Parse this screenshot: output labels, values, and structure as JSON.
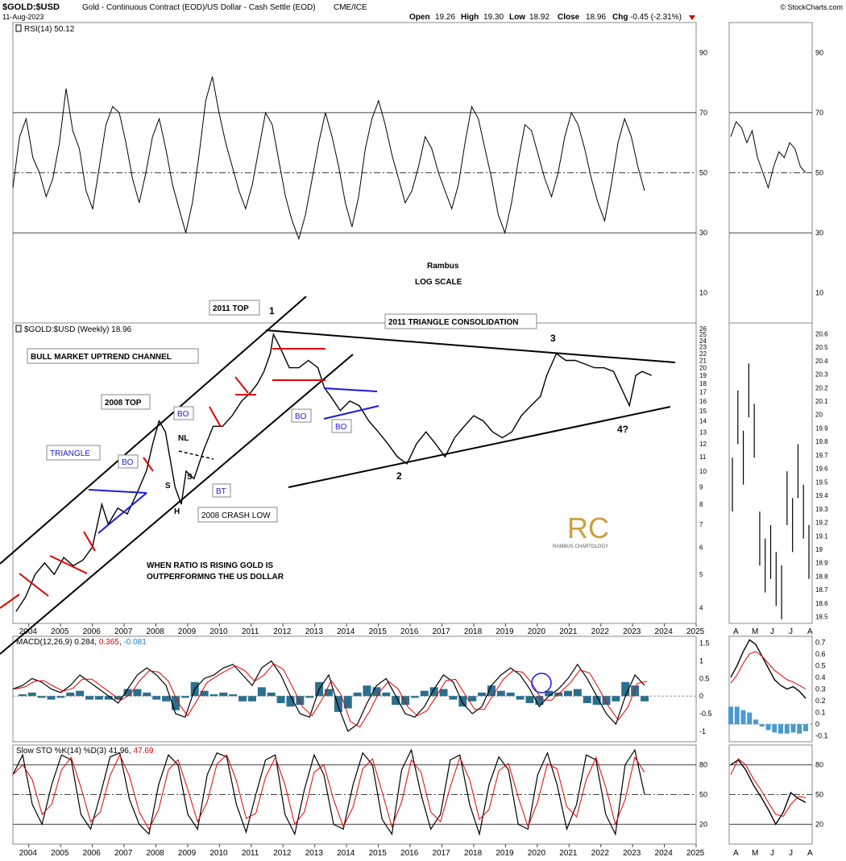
{
  "header": {
    "symbol": "$GOLD:$USD",
    "description": "Gold - Continuous Contract (EOD)/US Dollar - Cash Settle (EOD)",
    "exchange": "CME/ICE",
    "date": "11-Aug-2023",
    "open_label": "Open",
    "open": "19.26",
    "high_label": "High",
    "high": "19.30",
    "low_label": "Low",
    "low": "18.92",
    "close_label": "Close",
    "close": "18.96",
    "chg_label": "Chg",
    "chg": "-0.45 (-2.31%)",
    "copyright": "© StockCharts.com",
    "chg_color": "#cc0000"
  },
  "chart_data": [
    {
      "type": "line",
      "panel": "rsi",
      "title": "RSI(14) 50.12",
      "y_ticks": [
        90,
        70,
        50,
        30,
        10
      ],
      "ylim": [
        0,
        100
      ],
      "reference_lines": [
        70,
        50,
        30
      ],
      "series": [
        {
          "values": [
            45,
            62,
            68,
            55,
            50,
            42,
            48,
            60,
            78,
            64,
            58,
            44,
            38,
            52,
            66,
            72,
            70,
            60,
            48,
            40,
            50,
            62,
            68,
            58,
            46,
            38,
            30,
            40,
            56,
            74,
            82,
            70,
            60,
            52,
            44,
            38,
            46,
            58,
            70,
            66,
            54,
            42,
            34,
            28,
            36,
            48,
            60,
            70,
            62,
            52,
            40,
            32,
            42,
            58,
            68,
            74,
            66,
            56,
            48,
            40,
            44,
            52,
            62,
            58,
            50,
            44,
            38,
            46,
            60,
            72,
            68,
            58,
            48,
            36,
            30,
            40,
            54,
            66,
            64,
            56,
            48,
            42,
            50,
            62,
            70,
            66,
            58,
            48,
            40,
            34,
            46,
            60,
            68,
            62,
            52,
            44
          ]
        }
      ],
      "notes": [
        "Rambus",
        "LOG SCALE"
      ]
    },
    {
      "type": "line",
      "panel": "rsi_daily",
      "y_ticks": [
        90,
        70,
        50,
        30,
        10
      ],
      "ylim": [
        0,
        100
      ],
      "series": [
        {
          "values": [
            62,
            67,
            65,
            60,
            64,
            55,
            50,
            45,
            52,
            57,
            55,
            60,
            58,
            52,
            50
          ]
        }
      ]
    },
    {
      "type": "line",
      "panel": "price",
      "title": "$GOLD:$USD (Weekly) 18.96",
      "scale": "log",
      "y_ticks": [
        26,
        25,
        24,
        23,
        22,
        21,
        20,
        19,
        18,
        17,
        16,
        15,
        14,
        13,
        12,
        11,
        10,
        9,
        8,
        7,
        6,
        5,
        4
      ],
      "ylim": [
        3.6,
        27
      ],
      "x_labels": [
        "2004",
        "2005",
        "2006",
        "2007",
        "2008",
        "2009",
        "2010",
        "2011",
        "2012",
        "2013",
        "2014",
        "2015",
        "2016",
        "2017",
        "2018",
        "2019",
        "2020",
        "2021",
        "2022",
        "2023",
        "2024",
        "2025"
      ],
      "xlim": [
        2003.5,
        2025
      ],
      "series": [
        {
          "x": [
            2003.6,
            2003.9,
            2004.2,
            2004.5,
            2004.8,
            2005.1,
            2005.4,
            2005.7,
            2006.0,
            2006.3,
            2006.5,
            2006.8,
            2007.1,
            2007.4,
            2007.7,
            2007.9,
            2008.1,
            2008.3,
            2008.6,
            2008.8,
            2008.95,
            2009.2,
            2009.5,
            2009.8,
            2010.1,
            2010.4,
            2010.7,
            2011.0,
            2011.2,
            2011.4,
            2011.6,
            2011.7,
            2011.9,
            2012.2,
            2012.5,
            2012.8,
            2013.1,
            2013.3,
            2013.5,
            2013.8,
            2014.1,
            2014.4,
            2014.7,
            2015.0,
            2015.3,
            2015.6,
            2015.9,
            2016.2,
            2016.5,
            2016.8,
            2017.1,
            2017.4,
            2017.7,
            2018.0,
            2018.3,
            2018.6,
            2018.9,
            2019.2,
            2019.5,
            2019.8,
            2020.1,
            2020.3,
            2020.6,
            2020.9,
            2021.2,
            2021.5,
            2021.8,
            2022.1,
            2022.4,
            2022.7,
            2022.9,
            2023.1,
            2023.3,
            2023.6
          ],
          "y": [
            3.9,
            4.3,
            5.0,
            5.4,
            5.0,
            5.6,
            5.3,
            5.5,
            6.0,
            8.0,
            7.0,
            7.8,
            7.5,
            8.6,
            10.0,
            12.0,
            14.0,
            13.0,
            9.0,
            8.0,
            10.0,
            9.5,
            11.5,
            13.5,
            13.5,
            14.5,
            16.0,
            17.0,
            18.0,
            19.5,
            22.0,
            25.0,
            23.0,
            20.0,
            20.0,
            21.0,
            20.0,
            17.5,
            16.5,
            15.0,
            16.0,
            15.5,
            14.0,
            13.0,
            12.0,
            11.0,
            10.5,
            12.0,
            13.0,
            12.0,
            11.0,
            12.5,
            13.5,
            14.5,
            14.0,
            13.0,
            12.5,
            13.0,
            14.5,
            15.5,
            16.5,
            19.0,
            22.0,
            21.0,
            21.0,
            20.5,
            20.0,
            20.0,
            19.5,
            17.0,
            15.5,
            19.0,
            19.5,
            19.0
          ]
        }
      ],
      "annotations": [
        "2011 TOP",
        "1",
        "BULL MARKET UPTREND CHANNEL",
        "2008 TOP",
        "TRIANGLE",
        "BO",
        "BO",
        "NL",
        "S",
        "S",
        "H",
        "BT",
        "2008 CRASH LOW",
        "WHEN RATIO IS RISING GOLD IS",
        "OUTPERFORMNG THE US DOLLAR",
        "2011 TRIANGLE CONSOLIDATION",
        "BO",
        "BO",
        "2",
        "3",
        "4?"
      ]
    },
    {
      "type": "bar",
      "panel": "price_daily",
      "y_ticks": [
        20.6,
        20.5,
        20.4,
        20.3,
        20.2,
        20.1,
        20.0,
        19.9,
        19.8,
        19.7,
        19.6,
        19.5,
        19.4,
        19.3,
        19.2,
        19.1,
        19.0,
        18.9,
        18.8,
        18.7,
        18.6,
        18.5
      ],
      "ylim": [
        18.45,
        20.68
      ],
      "x_labels": [
        "A",
        "M",
        "J",
        "J",
        "A"
      ],
      "series": [
        {
          "values": [
            19.5,
            20.0,
            19.7,
            20.2,
            19.9,
            19.1,
            18.9,
            19.0,
            18.8,
            18.7,
            19.4,
            19.2,
            19.6,
            19.3,
            19.0
          ]
        }
      ]
    },
    {
      "type": "line",
      "panel": "macd",
      "title": "MACD(12,26,9) 0.284, 0.365, -0.081",
      "title_parts": [
        "MACD(12,26,9) 0.284, ",
        "0.365",
        ", ",
        "-0.081"
      ],
      "y_ticks": [
        1.5,
        1.0,
        0.5,
        0.0,
        -0.5,
        -1.0
      ],
      "ylim": [
        -1.3,
        1.7
      ],
      "series": [
        {
          "values": [
            0.2,
            0.3,
            0.5,
            0.4,
            0.2,
            0.1,
            0.3,
            0.6,
            0.4,
            0.2,
            0.0,
            -0.2,
            0.2,
            0.6,
            0.8,
            0.6,
            0.3,
            -0.5,
            -0.6,
            0.2,
            0.5,
            0.6,
            0.8,
            0.9,
            0.6,
            0.3,
            0.8,
            1.0,
            0.6,
            0.0,
            -0.5,
            -0.6,
            0.2,
            0.6,
            -0.3,
            -1.0,
            -0.8,
            -0.2,
            0.3,
            0.5,
            0.0,
            -0.5,
            -0.6,
            -0.3,
            0.2,
            0.6,
            0.4,
            -0.2,
            -0.5,
            -0.3,
            0.3,
            0.6,
            0.8,
            0.6,
            0.2,
            -0.3,
            0.0,
            0.2,
            0.5,
            0.9,
            0.5,
            0.0,
            -0.5,
            -0.8,
            0.0,
            0.6,
            0.3
          ]
        }
      ]
    },
    {
      "type": "line",
      "panel": "macd_daily",
      "y_ticks": [
        0.7,
        0.6,
        0.5,
        0.4,
        0.3,
        0.2,
        0.1,
        0.0,
        -0.1
      ],
      "ylim": [
        -0.15,
        0.75
      ],
      "series": [
        {
          "name": "MACD",
          "values": [
            0.4,
            0.5,
            0.62,
            0.72,
            0.68,
            0.58,
            0.48,
            0.38,
            0.33,
            0.3,
            0.32,
            0.28,
            0.22
          ]
        },
        {
          "name": "signal",
          "values": [
            0.35,
            0.42,
            0.52,
            0.6,
            0.62,
            0.58,
            0.52,
            0.46,
            0.42,
            0.38,
            0.36,
            0.33,
            0.3
          ]
        }
      ],
      "histogram": [
        0.15,
        0.15,
        0.12,
        0.1,
        0.04,
        -0.02,
        -0.05,
        -0.07,
        -0.08,
        -0.08,
        -0.07,
        -0.08,
        -0.06
      ]
    },
    {
      "type": "line",
      "panel": "sto",
      "title": "Slow STO %K(14) %D(3) 41.96, 47.69",
      "title_parts": [
        "Slow STO %K(14) %D(3) 41.96, ",
        "47.69"
      ],
      "y_ticks": [
        80,
        50,
        20
      ],
      "ylim": [
        0,
        100
      ],
      "reference_lines": [
        80,
        50,
        20
      ],
      "series": [
        {
          "values": [
            70,
            90,
            40,
            20,
            60,
            90,
            85,
            30,
            15,
            50,
            88,
            92,
            45,
            20,
            10,
            60,
            90,
            80,
            30,
            15,
            70,
            92,
            88,
            40,
            12,
            50,
            85,
            90,
            30,
            10,
            55,
            90,
            70,
            20,
            15,
            60,
            92,
            80,
            25,
            10,
            75,
            95,
            50,
            15,
            30,
            85,
            90,
            40,
            10,
            60,
            88,
            75,
            20,
            15,
            70,
            92,
            60,
            15,
            40,
            90,
            85,
            30,
            10,
            80,
            95,
            50
          ]
        }
      ]
    },
    {
      "type": "line",
      "panel": "sto_daily",
      "y_ticks": [
        80,
        50,
        20
      ],
      "ylim": [
        0,
        100
      ],
      "series": [
        {
          "name": "%K",
          "values": [
            80,
            85,
            75,
            60,
            48,
            35,
            20,
            32,
            52,
            46,
            42
          ]
        },
        {
          "name": "%D",
          "values": [
            70,
            86,
            80,
            66,
            55,
            42,
            30,
            28,
            40,
            48,
            47
          ]
        }
      ]
    }
  ],
  "weekly_x_labels": [
    "2004",
    "2005",
    "2006",
    "2007",
    "2008",
    "2009",
    "2010",
    "2011",
    "2012",
    "2013",
    "2014",
    "2015",
    "2016",
    "2017",
    "2018",
    "2019",
    "2020",
    "2021",
    "2022",
    "2023",
    "2024",
    "2025"
  ],
  "daily_x_labels": [
    "A",
    "M",
    "J",
    "J",
    "A"
  ],
  "logo": {
    "text": "RAMBUS CHARTOLOGY",
    "monogram": "RC",
    "color": "#c9a040"
  },
  "colors": {
    "red": "#e00000",
    "blue": "#1a1adc",
    "hist": "#2b6f8f",
    "grid": "#000000"
  }
}
